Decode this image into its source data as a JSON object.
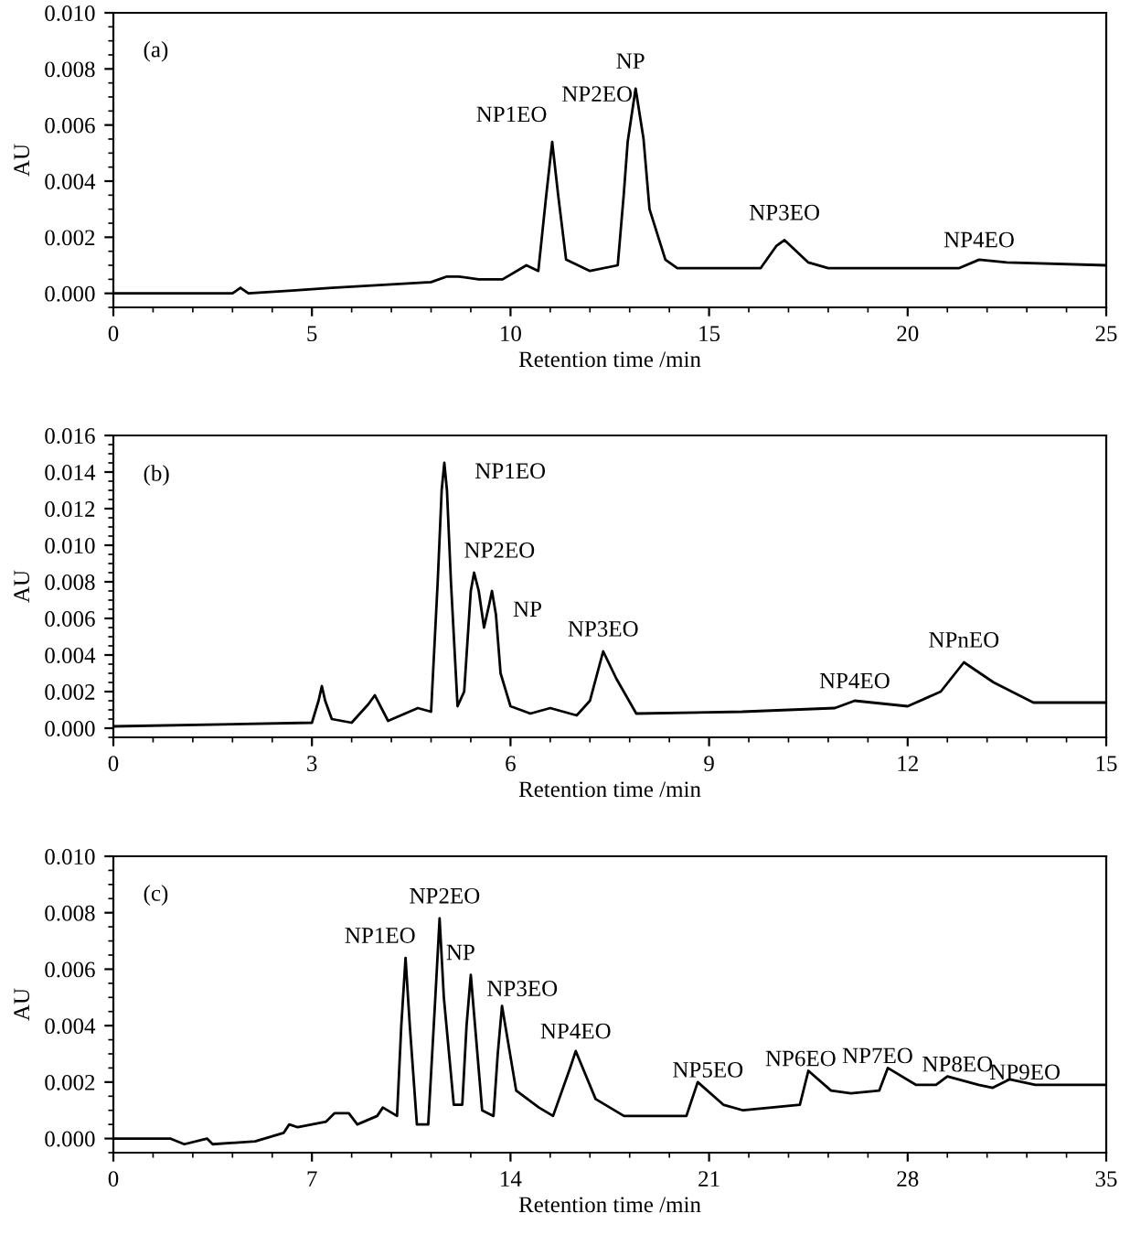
{
  "chart_data": [
    {
      "type": "line",
      "xlabel": "Retention time /min",
      "ylabel": "AU",
      "xlim": [
        0,
        25
      ],
      "ylim": [
        -0.0005,
        0.01
      ],
      "xticks": [
        0,
        5,
        10,
        15,
        20,
        25
      ],
      "yticks": [
        {
          "value": 0,
          "label": "0.000"
        },
        {
          "value": 0.002,
          "label": "0.002"
        },
        {
          "value": 0.004,
          "label": "0.004"
        },
        {
          "value": 0.006,
          "label": "0.006"
        },
        {
          "value": 0.008,
          "label": "0.008"
        },
        {
          "value": 0.01,
          "label": "0.010"
        }
      ],
      "grid": false,
      "legend": false,
      "marker": "none",
      "line_style": "solid",
      "series": [
        {
          "color": "#000000",
          "x": [
            0,
            3.0,
            3.2,
            3.4,
            4.5,
            5.5,
            8.0,
            8.4,
            8.7,
            9.2,
            9.8,
            10.4,
            10.7,
            10.9,
            11.05,
            11.2,
            11.4,
            12.0,
            12.7,
            12.85,
            12.95,
            13.15,
            13.35,
            13.5,
            13.9,
            14.2,
            16.0,
            16.3,
            16.7,
            16.9,
            17.2,
            17.5,
            18.0,
            21.3,
            21.8,
            22.5,
            25
          ],
          "values": [
            0.0,
            0.0,
            0.0002,
            0.0,
            0.0001,
            0.0002,
            0.0004,
            0.0006,
            0.0006,
            0.0005,
            0.0005,
            0.001,
            0.0008,
            0.0035,
            0.0054,
            0.0035,
            0.0012,
            0.0008,
            0.001,
            0.0035,
            0.0054,
            0.0073,
            0.0055,
            0.003,
            0.0012,
            0.0009,
            0.0009,
            0.0009,
            0.0017,
            0.0019,
            0.0015,
            0.0011,
            0.0009,
            0.0009,
            0.0012,
            0.0011,
            0.001
          ]
        }
      ],
      "annotations": [
        "(a)",
        {
          "text": "NP1EO",
          "x": 11.05,
          "y": 0.0054
        },
        {
          "text": "NP2EO",
          "x": 12.95,
          "y": 0.0054
        },
        {
          "text": "NP",
          "x": 13.15,
          "y": 0.0073
        },
        {
          "text": "NP3EO",
          "x": 16.9,
          "y": 0.0019
        },
        {
          "text": "NP4EO",
          "x": 21.8,
          "y": 0.0012
        }
      ]
    },
    {
      "type": "line",
      "xlabel": "Retention time /min",
      "ylabel": "AU",
      "xlim": [
        0,
        15
      ],
      "ylim": [
        -0.0005,
        0.016
      ],
      "xticks": [
        0,
        3,
        6,
        9,
        12,
        15
      ],
      "yticks": [
        {
          "value": 0,
          "label": "0.000"
        },
        {
          "value": 0.002,
          "label": "0.002"
        },
        {
          "value": 0.004,
          "label": "0.004"
        },
        {
          "value": 0.006,
          "label": "0.006"
        },
        {
          "value": 0.008,
          "label": "0.008"
        },
        {
          "value": 0.01,
          "label": "0.010"
        },
        {
          "value": 0.012,
          "label": "0.012"
        },
        {
          "value": 0.014,
          "label": "0.014"
        },
        {
          "value": 0.016,
          "label": "0.016"
        }
      ],
      "grid": false,
      "legend": false,
      "marker": "none",
      "line_style": "solid",
      "series": [
        {
          "color": "#000000",
          "x": [
            0,
            3.0,
            3.1,
            3.15,
            3.2,
            3.3,
            3.6,
            3.85,
            3.95,
            4.15,
            4.6,
            4.8,
            4.9,
            4.96,
            5.0,
            5.04,
            5.1,
            5.2,
            5.3,
            5.4,
            5.45,
            5.52,
            5.6,
            5.68,
            5.72,
            5.78,
            5.85,
            6.0,
            6.3,
            6.6,
            7.0,
            7.2,
            7.4,
            7.6,
            7.9,
            9.5,
            10.9,
            11.2,
            12.0,
            12.5,
            12.85,
            13.3,
            13.9,
            15
          ],
          "values": [
            0.0001,
            0.0003,
            0.0015,
            0.0023,
            0.0015,
            0.0005,
            0.0003,
            0.0013,
            0.0018,
            0.0004,
            0.0011,
            0.0009,
            0.008,
            0.013,
            0.0145,
            0.013,
            0.008,
            0.0012,
            0.002,
            0.0075,
            0.0085,
            0.0075,
            0.0055,
            0.0068,
            0.0075,
            0.0062,
            0.003,
            0.0012,
            0.0008,
            0.0011,
            0.0007,
            0.0015,
            0.0042,
            0.0027,
            0.0008,
            0.0009,
            0.0011,
            0.0015,
            0.0012,
            0.002,
            0.0036,
            0.0025,
            0.0014,
            0.0014
          ]
        }
      ],
      "annotations": [
        "(b)",
        {
          "text": "NP1EO",
          "x": 5.0,
          "y": 0.0145
        },
        {
          "text": "NP2EO",
          "x": 5.45,
          "y": 0.0085
        },
        {
          "text": "NP",
          "x": 5.72,
          "y": 0.0075
        },
        {
          "text": "NP3EO",
          "x": 7.4,
          "y": 0.0042
        },
        {
          "text": "NP4EO",
          "x": 11.2,
          "y": 0.0015
        },
        {
          "text": "NPnEO",
          "x": 12.85,
          "y": 0.0036
        }
      ]
    },
    {
      "type": "line",
      "xlabel": "Retention time /min",
      "ylabel": "AU",
      "xlim": [
        0,
        35
      ],
      "ylim": [
        -0.0005,
        0.01
      ],
      "xticks": [
        0,
        7,
        14,
        21,
        28,
        35
      ],
      "yticks": [
        {
          "value": 0,
          "label": "0.000"
        },
        {
          "value": 0.002,
          "label": "0.002"
        },
        {
          "value": 0.004,
          "label": "0.004"
        },
        {
          "value": 0.006,
          "label": "0.006"
        },
        {
          "value": 0.008,
          "label": "0.008"
        },
        {
          "value": 0.01,
          "label": "0.010"
        }
      ],
      "grid": false,
      "legend": false,
      "marker": "none",
      "line_style": "solid",
      "series": [
        {
          "color": "#000000",
          "x": [
            0,
            2.0,
            2.5,
            3.3,
            3.5,
            5.0,
            6.0,
            6.2,
            6.5,
            7.5,
            7.8,
            8.3,
            8.6,
            9.3,
            9.5,
            10.0,
            10.15,
            10.3,
            10.45,
            10.7,
            11.1,
            11.35,
            11.5,
            11.65,
            12.0,
            12.3,
            12.45,
            12.6,
            12.75,
            13.0,
            13.4,
            13.55,
            13.7,
            13.9,
            14.2,
            15.0,
            15.5,
            16.1,
            16.3,
            17.0,
            18.0,
            20.2,
            20.6,
            21.5,
            22.2,
            24.2,
            24.5,
            25.3,
            26.0,
            27.0,
            27.3,
            28.3,
            29.0,
            29.4,
            30.5,
            31.0,
            31.6,
            32.5,
            35
          ],
          "values": [
            0.0,
            0.0,
            -0.0002,
            0.0,
            -0.0002,
            -0.0001,
            0.0002,
            0.0005,
            0.0004,
            0.0006,
            0.0009,
            0.0009,
            0.0005,
            0.0008,
            0.0011,
            0.0008,
            0.004,
            0.0064,
            0.004,
            0.0005,
            0.0005,
            0.005,
            0.0078,
            0.005,
            0.0012,
            0.0012,
            0.004,
            0.0058,
            0.004,
            0.001,
            0.0008,
            0.003,
            0.0047,
            0.0035,
            0.0017,
            0.0011,
            0.0008,
            0.0025,
            0.0031,
            0.0014,
            0.0008,
            0.0008,
            0.002,
            0.0012,
            0.001,
            0.0012,
            0.0024,
            0.0017,
            0.0016,
            0.0017,
            0.0025,
            0.0019,
            0.0019,
            0.0022,
            0.0019,
            0.0018,
            0.0021,
            0.0019,
            0.0019
          ]
        }
      ],
      "annotations": [
        "(c)",
        {
          "text": "NP1EO",
          "x": 10.3,
          "y": 0.0064
        },
        {
          "text": "NP2EO",
          "x": 11.5,
          "y": 0.0078
        },
        {
          "text": "NP",
          "x": 12.6,
          "y": 0.0058
        },
        {
          "text": "NP3EO",
          "x": 13.7,
          "y": 0.0047
        },
        {
          "text": "NP4EO",
          "x": 16.3,
          "y": 0.0031
        },
        {
          "text": "NP5EO",
          "x": 20.6,
          "y": 0.002
        },
        {
          "text": "NP6EO",
          "x": 24.5,
          "y": 0.0024
        },
        {
          "text": "NP7EO",
          "x": 27.3,
          "y": 0.0025
        },
        {
          "text": "NP8EO",
          "x": 29.4,
          "y": 0.0022
        },
        {
          "text": "NP9EO",
          "x": 31.6,
          "y": 0.0021
        }
      ]
    }
  ]
}
